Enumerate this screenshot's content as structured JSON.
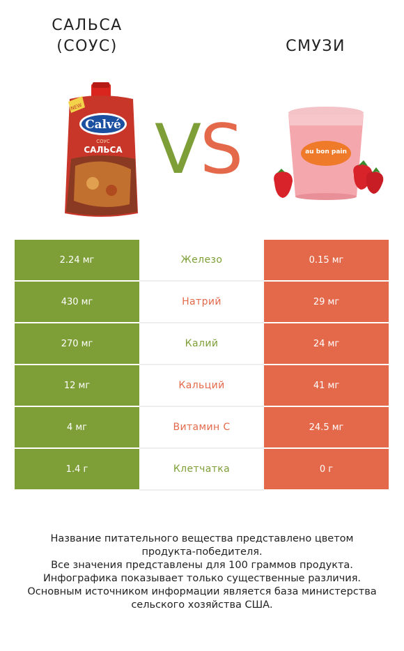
{
  "left_title": [
    "САЛЬСА",
    "(СОУС)"
  ],
  "right_title": "СМУЗИ",
  "vs": {
    "v": "V",
    "s": "S"
  },
  "left_product": {
    "brand": "Calvé",
    "sub": "СОУС",
    "name": "САЛЬСА",
    "badge": "NEW"
  },
  "right_product": {
    "cup_text": "au bon pain"
  },
  "colors": {
    "green": "#7e9f37",
    "orange": "#e4694a"
  },
  "rows": [
    {
      "left": "2.24 мг",
      "nutrient": "Железо",
      "right": "0.15 мг",
      "winner": "left"
    },
    {
      "left": "430 мг",
      "nutrient": "Натрий",
      "right": "29 мг",
      "winner": "right"
    },
    {
      "left": "270 мг",
      "nutrient": "Калий",
      "right": "24 мг",
      "winner": "left"
    },
    {
      "left": "12 мг",
      "nutrient": "Кальций",
      "right": "41 мг",
      "winner": "right"
    },
    {
      "left": "4 мг",
      "nutrient": "Витамин C",
      "right": "24.5 мг",
      "winner": "right"
    },
    {
      "left": "1.4 г",
      "nutrient": "Клетчатка",
      "right": "0 г",
      "winner": "left"
    }
  ],
  "footer": [
    "Название питательного вещества представлено цветом",
    "продукта-победителя.",
    "Все значения представлены для 100 граммов продукта.",
    "Инфографика показывает только существенные различия.",
    "Основным источником информации является база министерства",
    "сельского хозяйства США."
  ]
}
